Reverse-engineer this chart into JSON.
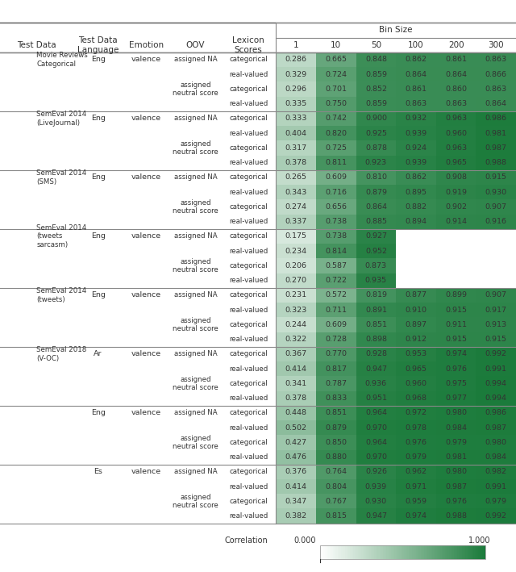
{
  "header_row": [
    "Test Data",
    "Test Data\nLanguage",
    "Emotion",
    "OOV",
    "Lexicon\nScores",
    "1",
    "10",
    "50",
    "100",
    "200",
    "300"
  ],
  "bin_size_cols": [
    "1",
    "10",
    "50",
    "100",
    "200",
    "300"
  ],
  "rows": [
    {
      "test_data": "Movie Reviews\nCategorical",
      "lang": "Eng",
      "emotion": "valence",
      "oov": "assigned NA",
      "lex": "categorical",
      "vals": [
        0.286,
        0.665,
        0.848,
        0.862,
        0.861,
        0.863
      ]
    },
    {
      "test_data": "",
      "lang": "",
      "emotion": "",
      "oov": "",
      "lex": "real-valued",
      "vals": [
        0.329,
        0.724,
        0.859,
        0.864,
        0.864,
        0.866
      ]
    },
    {
      "test_data": "",
      "lang": "",
      "emotion": "",
      "oov": "assigned\nneutral score",
      "lex": "categorical",
      "vals": [
        0.296,
        0.701,
        0.852,
        0.861,
        0.86,
        0.863
      ]
    },
    {
      "test_data": "",
      "lang": "",
      "emotion": "",
      "oov": "",
      "lex": "real-valued",
      "vals": [
        0.335,
        0.75,
        0.859,
        0.863,
        0.863,
        0.864
      ]
    },
    {
      "test_data": "SemEval 2014\n(LiveJournal)",
      "lang": "Eng",
      "emotion": "valence",
      "oov": "assigned NA",
      "lex": "categorical",
      "vals": [
        0.333,
        0.742,
        0.9,
        0.932,
        0.963,
        0.986
      ]
    },
    {
      "test_data": "",
      "lang": "",
      "emotion": "",
      "oov": "",
      "lex": "real-valued",
      "vals": [
        0.404,
        0.82,
        0.925,
        0.939,
        0.96,
        0.981
      ]
    },
    {
      "test_data": "",
      "lang": "",
      "emotion": "",
      "oov": "assigned\nneutral score",
      "lex": "categorical",
      "vals": [
        0.317,
        0.725,
        0.878,
        0.924,
        0.963,
        0.987
      ]
    },
    {
      "test_data": "",
      "lang": "",
      "emotion": "",
      "oov": "",
      "lex": "real-valued",
      "vals": [
        0.378,
        0.811,
        0.923,
        0.939,
        0.965,
        0.988
      ]
    },
    {
      "test_data": "SemEval 2014\n(SMS)",
      "lang": "Eng",
      "emotion": "valence",
      "oov": "assigned NA",
      "lex": "categorical",
      "vals": [
        0.265,
        0.609,
        0.81,
        0.862,
        0.908,
        0.915
      ]
    },
    {
      "test_data": "",
      "lang": "",
      "emotion": "",
      "oov": "",
      "lex": "real-valued",
      "vals": [
        0.343,
        0.716,
        0.879,
        0.895,
        0.919,
        0.93
      ]
    },
    {
      "test_data": "",
      "lang": "",
      "emotion": "",
      "oov": "assigned\nneutral score",
      "lex": "categorical",
      "vals": [
        0.274,
        0.656,
        0.864,
        0.882,
        0.902,
        0.907
      ]
    },
    {
      "test_data": "",
      "lang": "",
      "emotion": "",
      "oov": "",
      "lex": "real-valued",
      "vals": [
        0.337,
        0.738,
        0.885,
        0.894,
        0.914,
        0.916
      ]
    },
    {
      "test_data": "SemEval 2014\n(tweets\nsarcasm)",
      "lang": "Eng",
      "emotion": "valence",
      "oov": "assigned NA",
      "lex": "categorical",
      "vals": [
        0.175,
        0.738,
        0.927,
        null,
        null,
        null
      ]
    },
    {
      "test_data": "",
      "lang": "",
      "emotion": "",
      "oov": "",
      "lex": "real-valued",
      "vals": [
        0.234,
        0.814,
        0.952,
        null,
        null,
        null
      ]
    },
    {
      "test_data": "",
      "lang": "",
      "emotion": "",
      "oov": "assigned\nneutral score",
      "lex": "categorical",
      "vals": [
        0.206,
        0.587,
        0.873,
        null,
        null,
        null
      ]
    },
    {
      "test_data": "",
      "lang": "",
      "emotion": "",
      "oov": "",
      "lex": "real-valued",
      "vals": [
        0.27,
        0.722,
        0.935,
        null,
        null,
        null
      ]
    },
    {
      "test_data": "SemEval 2014\n(tweets)",
      "lang": "Eng",
      "emotion": "valence",
      "oov": "assigned NA",
      "lex": "categorical",
      "vals": [
        0.231,
        0.572,
        0.819,
        0.877,
        0.899,
        0.907
      ]
    },
    {
      "test_data": "",
      "lang": "",
      "emotion": "",
      "oov": "",
      "lex": "real-valued",
      "vals": [
        0.323,
        0.711,
        0.891,
        0.91,
        0.915,
        0.917
      ]
    },
    {
      "test_data": "",
      "lang": "",
      "emotion": "",
      "oov": "assigned\nneutral score",
      "lex": "categorical",
      "vals": [
        0.244,
        0.609,
        0.851,
        0.897,
        0.911,
        0.913
      ]
    },
    {
      "test_data": "",
      "lang": "",
      "emotion": "",
      "oov": "",
      "lex": "real-valued",
      "vals": [
        0.322,
        0.728,
        0.898,
        0.912,
        0.915,
        0.915
      ]
    },
    {
      "test_data": "SemEval 2018\n(V-OC)",
      "lang": "Ar",
      "emotion": "valence",
      "oov": "assigned NA",
      "lex": "categorical",
      "vals": [
        0.367,
        0.77,
        0.928,
        0.953,
        0.974,
        0.992
      ]
    },
    {
      "test_data": "",
      "lang": "",
      "emotion": "",
      "oov": "",
      "lex": "real-valued",
      "vals": [
        0.414,
        0.817,
        0.947,
        0.965,
        0.976,
        0.991
      ]
    },
    {
      "test_data": "",
      "lang": "",
      "emotion": "",
      "oov": "assigned\nneutral score",
      "lex": "categorical",
      "vals": [
        0.341,
        0.787,
        0.936,
        0.96,
        0.975,
        0.994
      ]
    },
    {
      "test_data": "",
      "lang": "",
      "emotion": "",
      "oov": "",
      "lex": "real-valued",
      "vals": [
        0.378,
        0.833,
        0.951,
        0.968,
        0.977,
        0.994
      ]
    },
    {
      "test_data": "",
      "lang": "Eng",
      "emotion": "valence",
      "oov": "assigned NA",
      "lex": "categorical",
      "vals": [
        0.448,
        0.851,
        0.964,
        0.972,
        0.98,
        0.986
      ]
    },
    {
      "test_data": "",
      "lang": "",
      "emotion": "",
      "oov": "",
      "lex": "real-valued",
      "vals": [
        0.502,
        0.879,
        0.97,
        0.978,
        0.984,
        0.987
      ]
    },
    {
      "test_data": "",
      "lang": "",
      "emotion": "",
      "oov": "assigned\nneutral score",
      "lex": "categorical",
      "vals": [
        0.427,
        0.85,
        0.964,
        0.976,
        0.979,
        0.98
      ]
    },
    {
      "test_data": "",
      "lang": "",
      "emotion": "",
      "oov": "",
      "lex": "real-valued",
      "vals": [
        0.476,
        0.88,
        0.97,
        0.979,
        0.981,
        0.984
      ]
    },
    {
      "test_data": "",
      "lang": "Es",
      "emotion": "valence",
      "oov": "assigned NA",
      "lex": "categorical",
      "vals": [
        0.376,
        0.764,
        0.926,
        0.962,
        0.98,
        0.982
      ]
    },
    {
      "test_data": "",
      "lang": "",
      "emotion": "",
      "oov": "",
      "lex": "real-valued",
      "vals": [
        0.414,
        0.804,
        0.939,
        0.971,
        0.987,
        0.991
      ]
    },
    {
      "test_data": "",
      "lang": "",
      "emotion": "",
      "oov": "assigned\nneutral score",
      "lex": "categorical",
      "vals": [
        0.347,
        0.767,
        0.93,
        0.959,
        0.976,
        0.979
      ]
    },
    {
      "test_data": "",
      "lang": "",
      "emotion": "",
      "oov": "",
      "lex": "real-valued",
      "vals": [
        0.382,
        0.815,
        0.947,
        0.974,
        0.988,
        0.992
      ]
    }
  ],
  "group_separators": [
    0,
    4,
    8,
    12,
    16,
    20,
    28,
    32
  ],
  "subgroup_separators": [
    2,
    6,
    10,
    14,
    18,
    22,
    26,
    30
  ],
  "bg_color": "#ffffff",
  "header_bg": "#ffffff",
  "text_color": "#333333",
  "col1_text_color": "#333333",
  "cell_text_color": "#333333"
}
